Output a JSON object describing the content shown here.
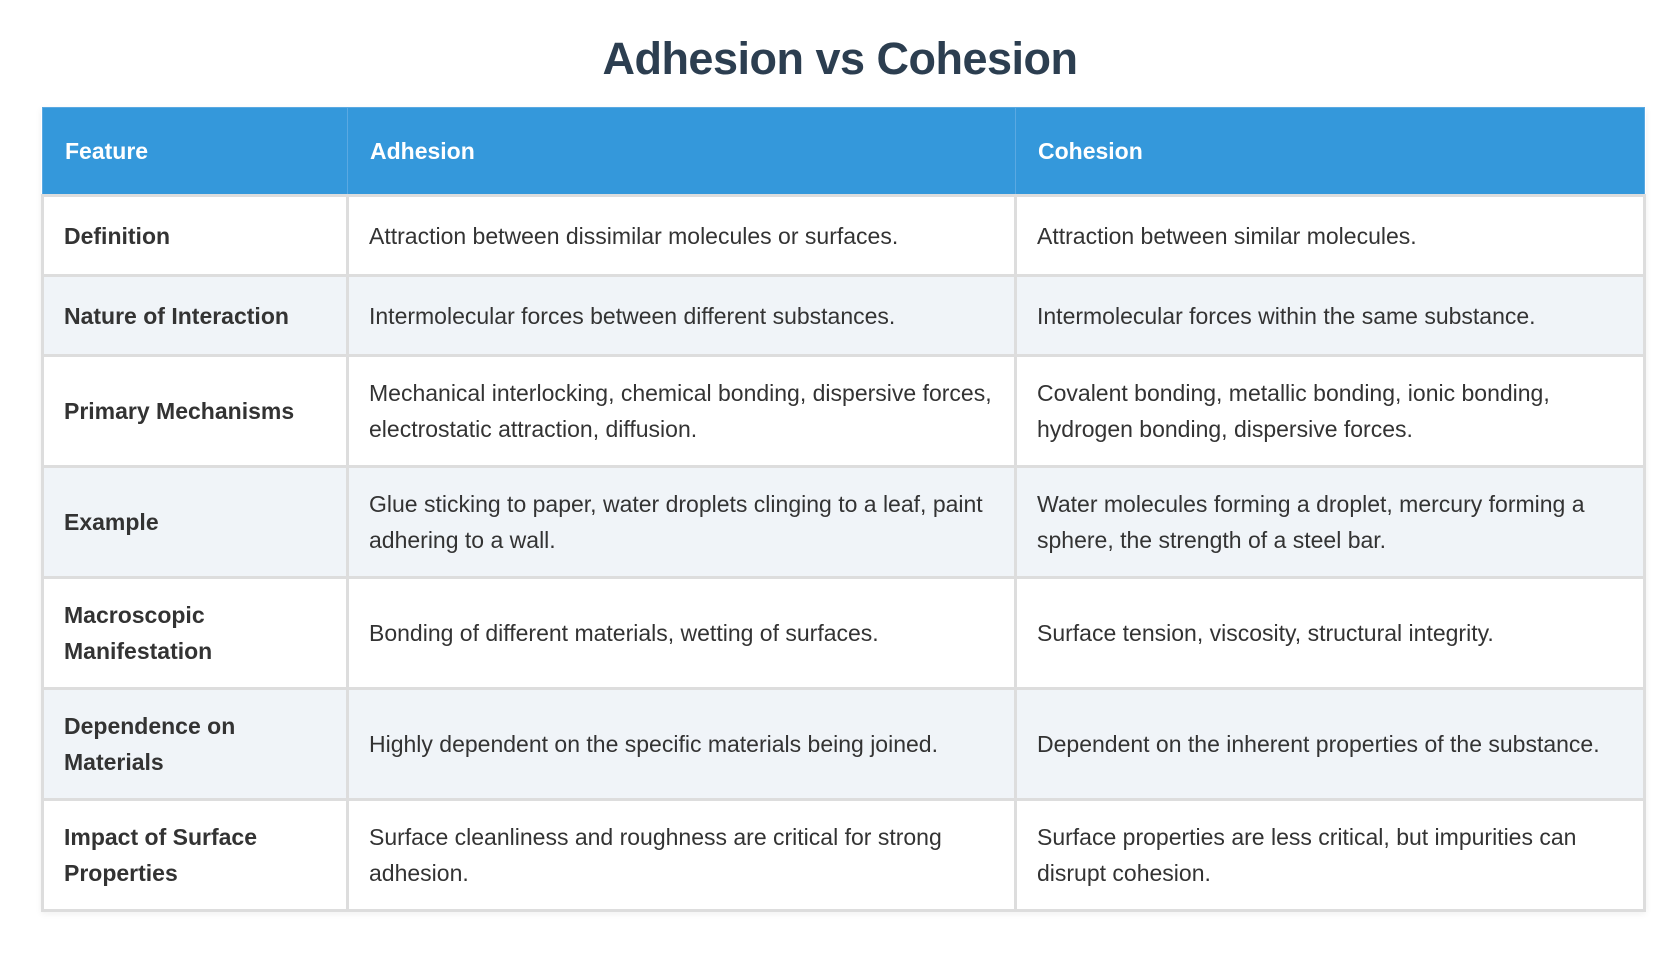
{
  "title": "Adhesion vs Cohesion",
  "table": {
    "headers": [
      "Feature",
      "Adhesion",
      "Cohesion"
    ],
    "rows": [
      {
        "feature": "Definition",
        "adhesion": "Attraction between dissimilar molecules or surfaces.",
        "cohesion": "Attraction between similar molecules."
      },
      {
        "feature": "Nature of Interaction",
        "adhesion": "Intermolecular forces between different substances.",
        "cohesion": "Intermolecular forces within the same substance."
      },
      {
        "feature": "Primary Mechanisms",
        "adhesion": "Mechanical interlocking, chemical bonding, dispersive forces, electrostatic attraction, diffusion.",
        "cohesion": "Covalent bonding, metallic bonding, ionic bonding, hydrogen bonding, dispersive forces."
      },
      {
        "feature": "Example",
        "adhesion": "Glue sticking to paper, water droplets clinging to a leaf, paint adhering to a wall.",
        "cohesion": "Water molecules forming a droplet, mercury forming a sphere, the strength of a steel bar."
      },
      {
        "feature": "Macroscopic Manifestation",
        "adhesion": "Bonding of different materials, wetting of surfaces.",
        "cohesion": "Surface tension, viscosity, structural integrity."
      },
      {
        "feature": "Dependence on Materials",
        "adhesion": "Highly dependent on the specific materials being joined.",
        "cohesion": "Dependent on the inherent properties of the substance."
      },
      {
        "feature": "Impact of Surface Properties",
        "adhesion": "Surface cleanliness and roughness are critical for strong adhesion.",
        "cohesion": "Surface properties are less critical, but impurities can disrupt cohesion."
      }
    ]
  },
  "colors": {
    "header_bg": "#3498db",
    "title": "#2c3e50",
    "alt_row_bg": "#f0f4f8",
    "border": "#dddddd"
  }
}
